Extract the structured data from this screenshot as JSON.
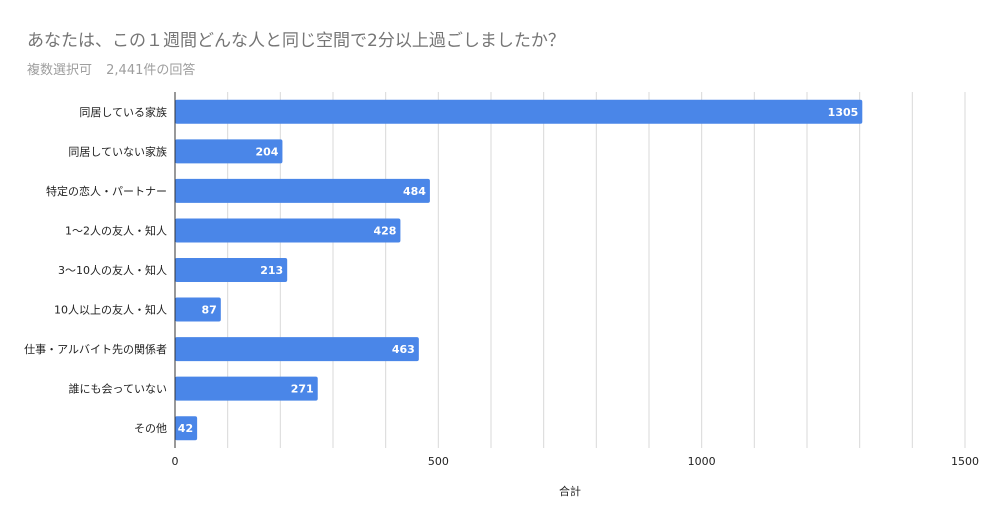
{
  "header": {
    "title": "あなたは、この１週間どんな人と同じ空間で2分以上過ごしましたか？",
    "mode": "複数選択可",
    "count": "2,441件の回答"
  },
  "colors": {
    "bar": "#4a86e8",
    "grid": "#d9d9d9",
    "value_label": "#ffffff"
  },
  "chart_data": {
    "type": "bar",
    "orientation": "horizontal",
    "categories": [
      "同居している家族",
      "同居していない家族",
      "特定の恋人・パートナー",
      "1〜2人の友人・知人",
      "3〜10人の友人・知人",
      "10人以上の友人・知人",
      "仕事・アルバイト先の関係者",
      "誰にも会っていない",
      "その他"
    ],
    "values": [
      1305,
      204,
      484,
      428,
      213,
      87,
      463,
      271,
      42
    ],
    "xlabel": "合計",
    "xlim": [
      0,
      1500
    ],
    "xticks": [
      0,
      500,
      1000,
      1500
    ],
    "grid": true,
    "legend": "none",
    "data_labels": true
  }
}
